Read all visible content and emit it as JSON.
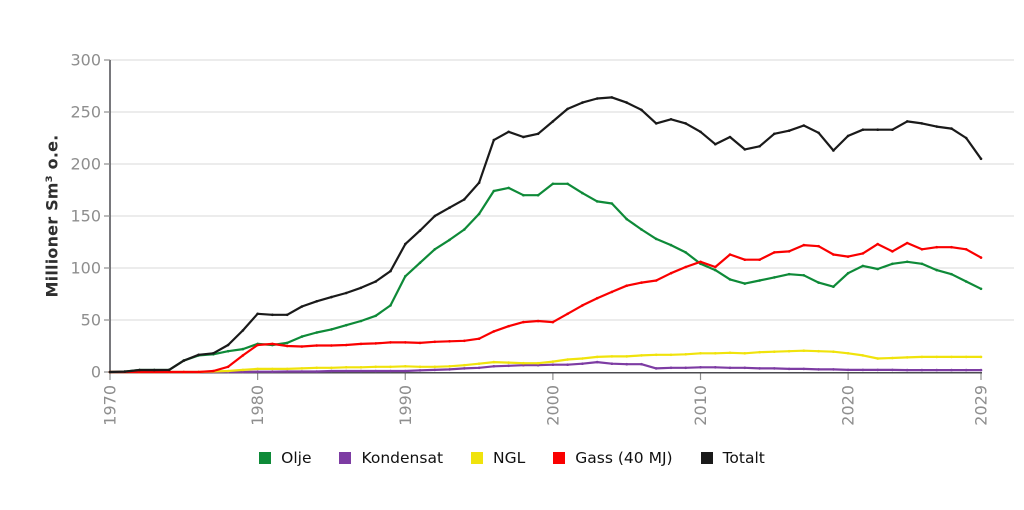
{
  "chart_data": {
    "type": "line",
    "title": "",
    "xlabel": "",
    "ylabel": "Millioner Sm³ o.e.",
    "ylim": [
      0,
      300
    ],
    "y_ticks": [
      0,
      50,
      100,
      150,
      200,
      250,
      300
    ],
    "x_ticks": [
      1970,
      1980,
      1990,
      2000,
      2010,
      2020,
      2029
    ],
    "grid": true,
    "legend_position": "bottom",
    "x": [
      1970,
      1971,
      1972,
      1973,
      1974,
      1975,
      1976,
      1977,
      1978,
      1979,
      1980,
      1981,
      1982,
      1983,
      1984,
      1985,
      1986,
      1987,
      1988,
      1989,
      1990,
      1991,
      1992,
      1993,
      1994,
      1995,
      1996,
      1997,
      1998,
      1999,
      2000,
      2001,
      2002,
      2003,
      2004,
      2005,
      2006,
      2007,
      2008,
      2009,
      2010,
      2011,
      2012,
      2013,
      2014,
      2015,
      2016,
      2017,
      2018,
      2019,
      2020,
      2021,
      2022,
      2023,
      2024,
      2025,
      2026,
      2027,
      2028,
      2029
    ],
    "series": [
      {
        "name": "Olje",
        "color": "#0e8a38",
        "values": [
          0,
          0.4,
          1.9,
          1.9,
          2,
          11,
          16,
          17,
          20,
          22,
          27,
          26,
          28,
          34,
          38,
          41,
          45,
          49,
          54,
          64,
          92,
          105,
          118,
          127,
          137,
          152,
          174,
          177,
          170,
          170,
          181,
          181,
          172,
          164,
          162,
          147,
          137,
          128,
          122,
          115,
          104,
          98,
          89,
          85,
          88,
          91,
          94,
          93,
          86,
          82,
          95,
          102,
          99,
          104,
          106,
          104,
          98,
          94,
          87,
          80
        ]
      },
      {
        "name": "Kondensat",
        "color": "#7d3ca3",
        "values": [
          0,
          0,
          0,
          0,
          0,
          0,
          0,
          0,
          0,
          0,
          0.3,
          0.3,
          0.5,
          0.5,
          0.5,
          1,
          1,
          1,
          1,
          1,
          1,
          1.5,
          2,
          2.5,
          3.5,
          4,
          5.5,
          6,
          6.5,
          6.5,
          7,
          7,
          8,
          9.5,
          8,
          7.5,
          7.5,
          3.5,
          4,
          4,
          4.5,
          4.5,
          4,
          4,
          3.5,
          3.5,
          3,
          3,
          2.5,
          2.5,
          2,
          2,
          2,
          2,
          1.8,
          1.8,
          1.8,
          1.8,
          1.8,
          1.8
        ]
      },
      {
        "name": "NGL",
        "color": "#f0e30c",
        "values": [
          0,
          0,
          0,
          0,
          0,
          0,
          0,
          0.5,
          1,
          2,
          3,
          3,
          3,
          3.5,
          4,
          4,
          4.5,
          4.5,
          5,
          5,
          5.5,
          5,
          5,
          5.5,
          6.5,
          8,
          9.5,
          9,
          8.5,
          8.5,
          10,
          12,
          13,
          14.5,
          15,
          15,
          16,
          16.5,
          16.5,
          17,
          18,
          18,
          18.5,
          18,
          19,
          19.5,
          20,
          20.5,
          20,
          19.5,
          18,
          16,
          13,
          13.5,
          14,
          14.5,
          14.5,
          14.5,
          14.5,
          14.5
        ]
      },
      {
        "name": "Gass (40 MJ)",
        "color": "#fa0000",
        "values": [
          0,
          0,
          0,
          0,
          0,
          0,
          0,
          1,
          5,
          16,
          26,
          27,
          25,
          24.5,
          25.5,
          25.5,
          26,
          27,
          27.5,
          28.5,
          28.5,
          28,
          29,
          29.5,
          30,
          32,
          39,
          44,
          48,
          49,
          48,
          56,
          64,
          71,
          77,
          83,
          86,
          88,
          95,
          101,
          106,
          101,
          113,
          108,
          108,
          115,
          116,
          122,
          121,
          113,
          111,
          114,
          123,
          116,
          124,
          118,
          120,
          120,
          118,
          110
        ]
      },
      {
        "name": "Totalt",
        "color": "#1a1a1a",
        "values": [
          0,
          0.4,
          1.9,
          1.9,
          2,
          11,
          16.5,
          18,
          26,
          40,
          56,
          55,
          55,
          63,
          68,
          72,
          76,
          81,
          87,
          97,
          123,
          136,
          150,
          158,
          166,
          182,
          223,
          231,
          226,
          229,
          241,
          253,
          259,
          263,
          264,
          259,
          252,
          239,
          243,
          239,
          231,
          219,
          226,
          214,
          217,
          229,
          232,
          237,
          230,
          213,
          227,
          233,
          233,
          233,
          241,
          239,
          236,
          234,
          225,
          205
        ]
      }
    ]
  }
}
